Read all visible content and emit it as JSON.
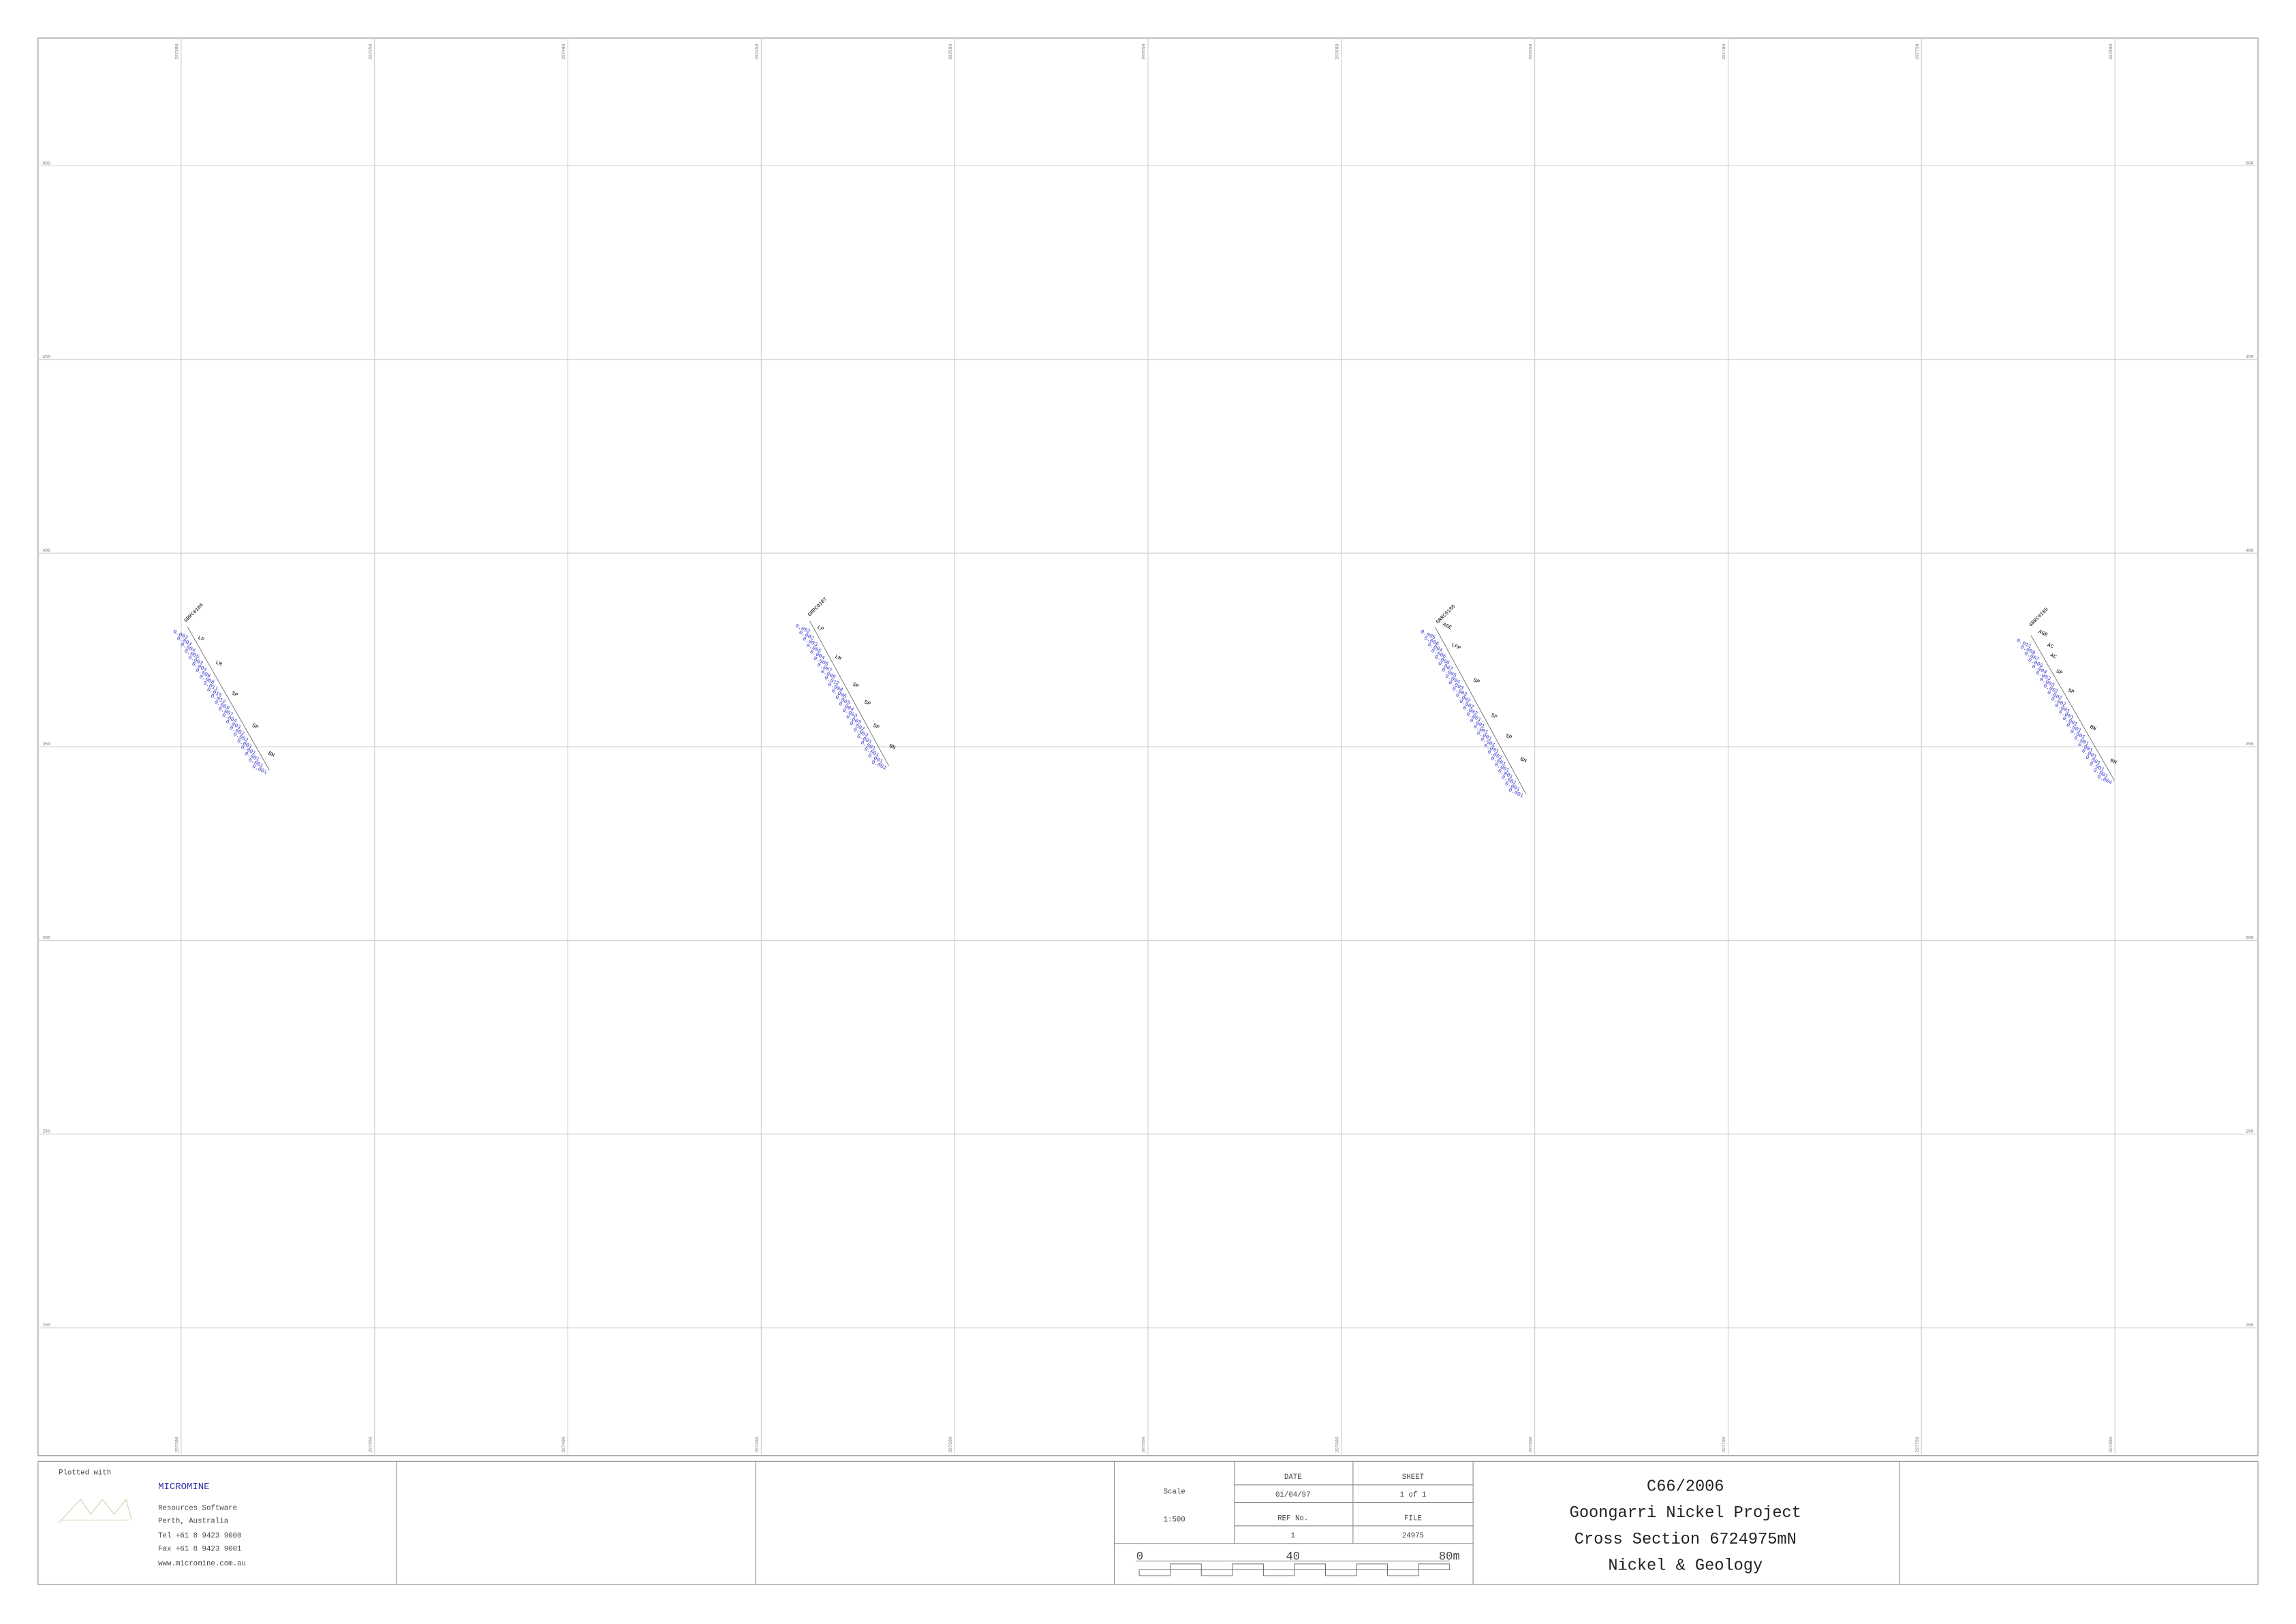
{
  "section": {
    "xticks": [
      297300,
      297350,
      297400,
      297450,
      297500,
      297550,
      297600,
      297650,
      297700,
      297750,
      297800
    ],
    "xlim": [
      297263,
      297837
    ],
    "yticks": [
      500,
      450,
      400,
      350,
      300,
      250,
      200
    ],
    "ylim": [
      167,
      533
    ],
    "holes": [
      {
        "name": "GRRC0186",
        "codes": [
          "LP",
          "LM",
          "SP",
          "SP",
          "BN"
        ],
        "values": [
          0.002,
          0.003,
          0.004,
          0.005,
          0.003,
          0.004,
          0.006,
          0.008,
          0.011,
          0.015,
          0.012,
          0.009,
          0.007,
          0.004,
          0.003,
          0.002,
          0.002,
          0.001,
          0.001,
          0.001,
          0.001,
          0.001
        ]
      },
      {
        "name": "GRRC0187",
        "codes": [
          "LP",
          "LM",
          "SP",
          "SP",
          "SP",
          "BN"
        ],
        "values": [
          0.002,
          0.002,
          0.003,
          0.005,
          0.004,
          0.006,
          0.007,
          0.009,
          0.012,
          0.008,
          0.006,
          0.005,
          0.004,
          0.003,
          0.003,
          0.002,
          0.002,
          0.001,
          0.001,
          0.001,
          0.001,
          0.001
        ]
      },
      {
        "name": "GRRC0188",
        "codes": [
          "AGE",
          "LFP",
          "SP",
          "SP",
          "SP",
          "BN"
        ],
        "values": [
          0.005,
          0.006,
          0.004,
          0.006,
          0.008,
          0.007,
          0.005,
          0.004,
          0.003,
          0.003,
          0.002,
          0.002,
          0.002,
          0.001,
          0.001,
          0.001,
          0.001,
          0.001,
          0.001,
          0.001,
          0.001,
          0.001,
          0.001,
          0.001,
          0.001,
          0.001
        ]
      },
      {
        "name": "GRRC0185",
        "codes": [
          "AGE",
          "AC",
          "AC",
          "SP",
          "SP",
          "BN",
          "BN"
        ],
        "values": [
          0.011,
          0.009,
          0.007,
          0.005,
          0.004,
          0.003,
          0.003,
          0.002,
          0.002,
          0.002,
          0.001,
          0.001,
          0.001,
          0.001,
          0.001,
          0.001,
          0.001,
          0.001,
          0.001,
          0.001,
          0.001,
          0.004
        ]
      }
    ]
  },
  "title_block": {
    "plotted_with": "Plotted with",
    "brand": "MICROMINE",
    "address": [
      "Resources Software",
      "Perth, Australia",
      "Tel +61 8 9423 9000",
      "Fax +61 8 9423 9001",
      "www.micromine.com.au"
    ],
    "scale_label": "Scale",
    "scale": "1:500",
    "date_label": "DATE",
    "date": "01/04/97",
    "sheet_label": "SHEET",
    "sheet": "1 of 1",
    "ref_label": "REF No.",
    "ref": "1",
    "file_label": "FILE",
    "file": "24975",
    "bar_labels": [
      "0",
      "40",
      "80m"
    ],
    "title": [
      "C66/2006",
      "Goongarri Nickel Project",
      "Cross Section 6724975mN",
      "Nickel & Geology"
    ]
  }
}
